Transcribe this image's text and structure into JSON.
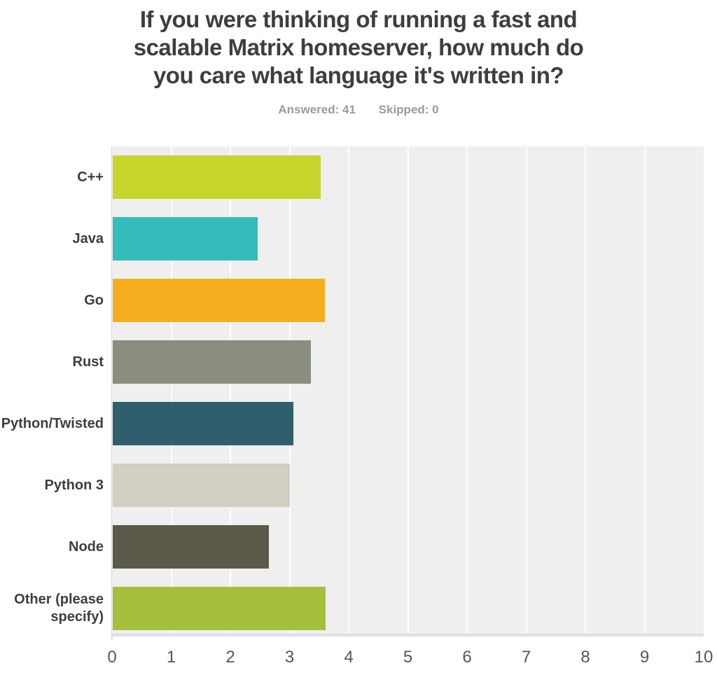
{
  "title": "If you were thinking of running a fast and\nscalable Matrix homeserver, how much do\nyou care what language it's written in?",
  "stats": {
    "answered": "Answered: 41",
    "skipped": "Skipped: 0"
  },
  "chart_data": {
    "type": "bar",
    "orientation": "horizontal",
    "categories": [
      "C++",
      "Java",
      "Go",
      "Rust",
      "Python/Twisted",
      "Python 3",
      "Node",
      "Other (please specify)"
    ],
    "values": [
      3.52,
      2.45,
      3.58,
      3.35,
      3.05,
      2.99,
      2.64,
      3.6
    ],
    "bar_colors": [
      "#c6d42b",
      "#34bcbb",
      "#f7ae1e",
      "#8a8e7e",
      "#2f5f6c",
      "#d0cfc1",
      "#5a594a",
      "#a3bf3b"
    ],
    "xlim": [
      0,
      10
    ],
    "x_ticks": [
      0,
      1,
      2,
      3,
      4,
      5,
      6,
      7,
      8,
      9,
      10
    ],
    "grid": true,
    "plot_background": "#efefef",
    "gridline_color": "#ffffff",
    "legend": false,
    "xlabel": "",
    "ylabel": ""
  }
}
